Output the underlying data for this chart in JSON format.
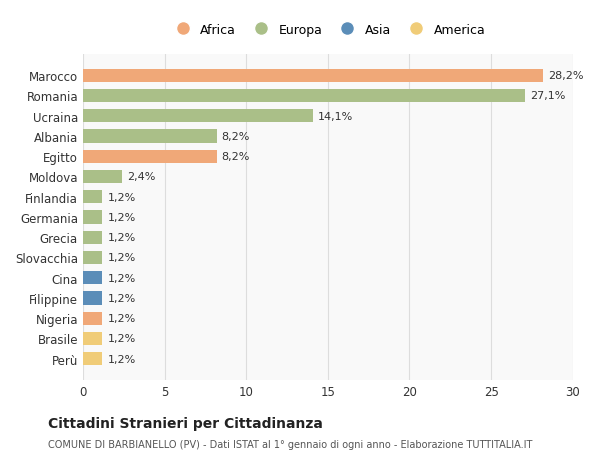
{
  "countries": [
    "Marocco",
    "Romania",
    "Ucraina",
    "Albania",
    "Egitto",
    "Moldova",
    "Finlandia",
    "Germania",
    "Grecia",
    "Slovacchia",
    "Cina",
    "Filippine",
    "Nigeria",
    "Brasile",
    "Perù"
  ],
  "values": [
    28.2,
    27.1,
    14.1,
    8.2,
    8.2,
    2.4,
    1.2,
    1.2,
    1.2,
    1.2,
    1.2,
    1.2,
    1.2,
    1.2,
    1.2
  ],
  "labels": [
    "28,2%",
    "27,1%",
    "14,1%",
    "8,2%",
    "8,2%",
    "2,4%",
    "1,2%",
    "1,2%",
    "1,2%",
    "1,2%",
    "1,2%",
    "1,2%",
    "1,2%",
    "1,2%",
    "1,2%"
  ],
  "continents": [
    "Africa",
    "Europa",
    "Europa",
    "Europa",
    "Africa",
    "Europa",
    "Europa",
    "Europa",
    "Europa",
    "Europa",
    "Asia",
    "Asia",
    "Africa",
    "America",
    "America"
  ],
  "colors": {
    "Africa": "#F0A878",
    "Europa": "#AABF88",
    "Asia": "#5B8DB8",
    "America": "#F0CC78"
  },
  "legend_order": [
    "Africa",
    "Europa",
    "Asia",
    "America"
  ],
  "legend_colors": [
    "#F0A878",
    "#AABF88",
    "#5B8DB8",
    "#F0CC78"
  ],
  "title": "Cittadini Stranieri per Cittadinanza",
  "subtitle": "COMUNE DI BARBIANELLO (PV) - Dati ISTAT al 1° gennaio di ogni anno - Elaborazione TUTTITALIA.IT",
  "xlim": [
    0,
    30
  ],
  "xticks": [
    0,
    5,
    10,
    15,
    20,
    25,
    30
  ],
  "bg_color": "#ffffff",
  "plot_bg_color": "#f9f9f9",
  "grid_color": "#dddddd"
}
